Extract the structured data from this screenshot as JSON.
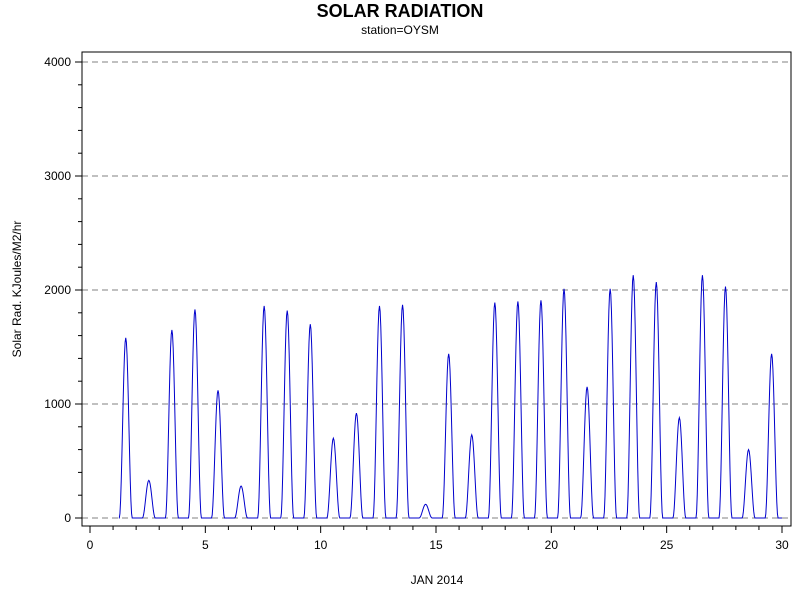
{
  "chart_data": {
    "type": "line",
    "title": "SOLAR RADIATION",
    "subtitle": "station=OYSM",
    "xlabel": "JAN 2014",
    "ylabel": "Solar Rad. KJoules/M2/hr",
    "xlim": [
      0,
      30
    ],
    "ylim": [
      -50,
      4000
    ],
    "x_ticks": [
      0,
      5,
      10,
      15,
      20,
      25,
      30
    ],
    "y_ticks": [
      0,
      1000,
      2000,
      3000,
      4000
    ],
    "grid": "horizontal dashed at y ticks",
    "colors": {
      "series": "#0000cc",
      "grid": "#808080",
      "axis": "#000000"
    },
    "series": [
      {
        "daily_peaks": [
          {
            "day": 1,
            "peak": 1580
          },
          {
            "day": 2,
            "peak": 330
          },
          {
            "day": 3,
            "peak": 1650
          },
          {
            "day": 4,
            "peak": 1830
          },
          {
            "day": 5,
            "peak": 1120
          },
          {
            "day": 6,
            "peak": 280
          },
          {
            "day": 7,
            "peak": 1860
          },
          {
            "day": 8,
            "peak": 1820
          },
          {
            "day": 9,
            "peak": 1700
          },
          {
            "day": 10,
            "peak": 700
          },
          {
            "day": 11,
            "peak": 920
          },
          {
            "day": 12,
            "peak": 1860
          },
          {
            "day": 13,
            "peak": 1870
          },
          {
            "day": 14,
            "peak": 120
          },
          {
            "day": 15,
            "peak": 1440
          },
          {
            "day": 16,
            "peak": 730
          },
          {
            "day": 17,
            "peak": 1890
          },
          {
            "day": 18,
            "peak": 1900
          },
          {
            "day": 19,
            "peak": 1910
          },
          {
            "day": 20,
            "peak": 2010
          },
          {
            "day": 21,
            "peak": 1150
          },
          {
            "day": 22,
            "peak": 2010
          },
          {
            "day": 23,
            "peak": 2130
          },
          {
            "day": 24,
            "peak": 2070
          },
          {
            "day": 25,
            "peak": 880
          },
          {
            "day": 26,
            "peak": 2130
          },
          {
            "day": 27,
            "peak": 2030
          },
          {
            "day": 28,
            "peak": 600
          },
          {
            "day": 29,
            "peak": 1440
          }
        ]
      }
    ]
  }
}
